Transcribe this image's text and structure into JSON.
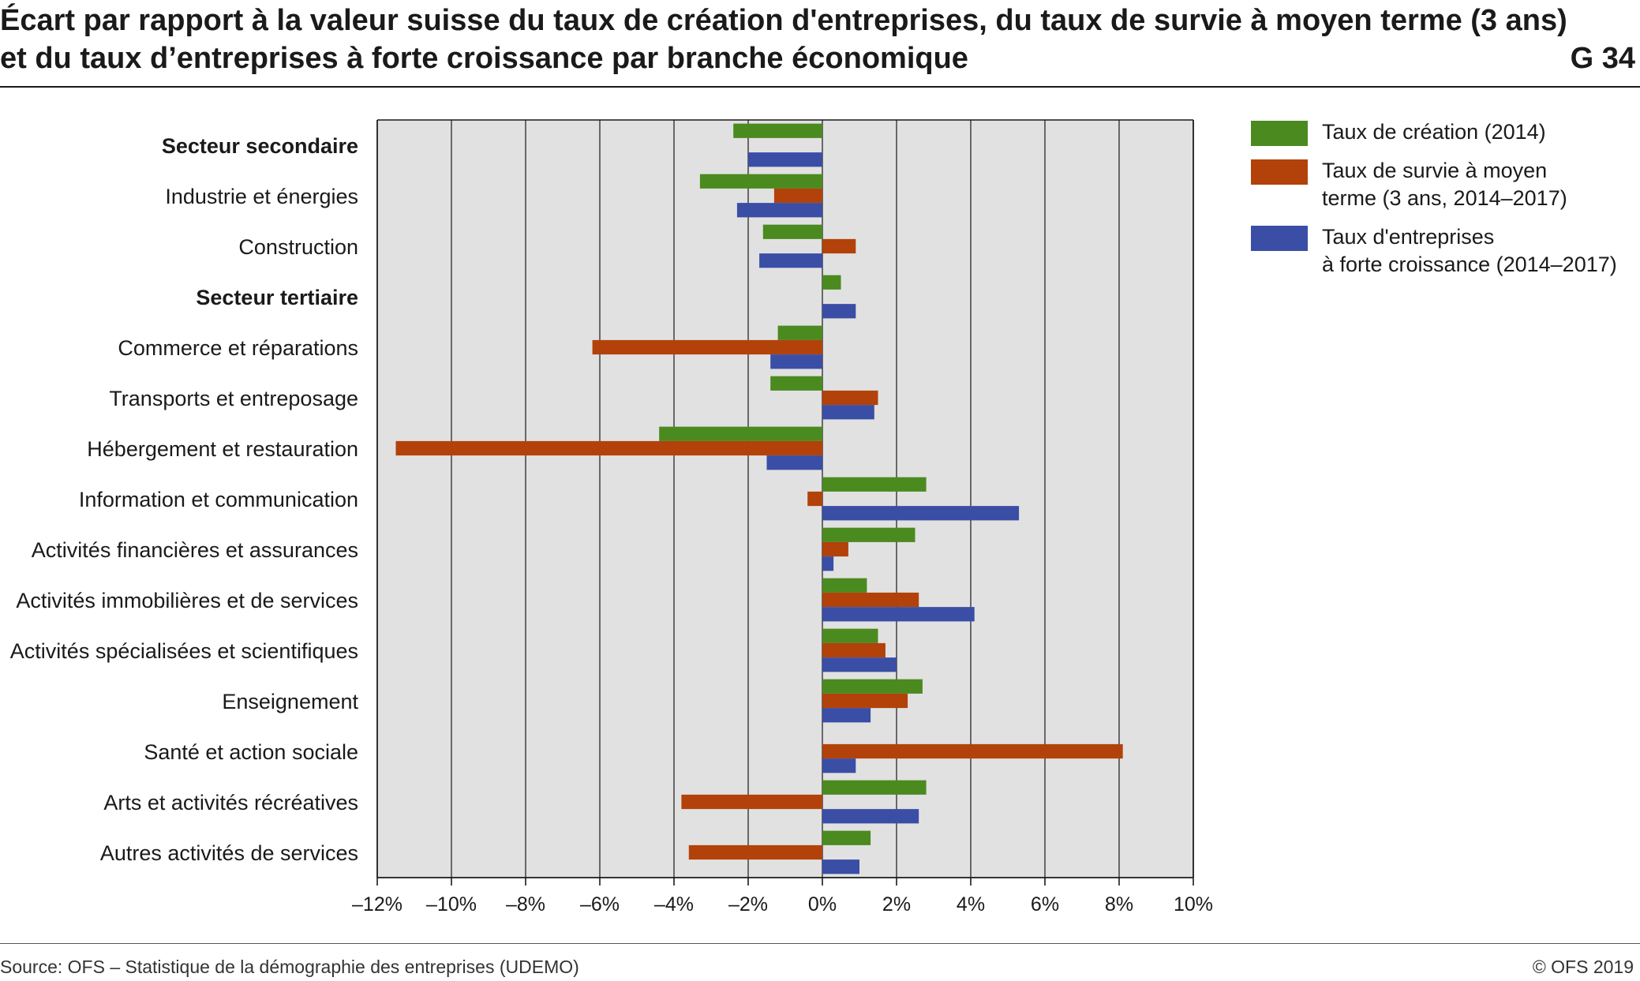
{
  "title": {
    "line1": "Écart par rapport à la valeur suisse du taux de création d'entreprises, du taux de survie à moyen terme (3 ans)",
    "line2": "et du taux d’entreprises à forte croissance par branche économique",
    "code": "G 34"
  },
  "footer": {
    "source": "Source: OFS – Statistique de la démographie des entreprises (UDEMO)",
    "copyright": "© OFS 2019"
  },
  "colors": {
    "plot_background": "#e1e1e1",
    "creation": "#4b8a1f",
    "survie": "#b2420a",
    "croissance": "#3a4ea5"
  },
  "chart_data": {
    "type": "bar",
    "orientation": "horizontal",
    "title": "Écart par rapport à la valeur suisse du taux de création d'entreprises, du taux de survie à moyen terme (3 ans) et du taux d’entreprises à forte croissance par branche économique",
    "xlabel": "",
    "ylabel": "",
    "xlim": [
      -12,
      10
    ],
    "x_ticks": [
      -12,
      -10,
      -8,
      -6,
      -4,
      -2,
      0,
      2,
      4,
      6,
      8,
      10
    ],
    "x_tick_labels": [
      "–12%",
      "–10%",
      "–8%",
      "–6%",
      "–4%",
      "–2%",
      "0%",
      "2%",
      "4%",
      "6%",
      "8%",
      "10%"
    ],
    "grid": "vertical",
    "legend_position": "right",
    "categories": [
      "Secteur secondaire",
      "Industrie et énergies",
      "Construction",
      "Secteur tertiaire",
      "Commerce et réparations",
      "Transports et entreposage",
      "Hébergement et restauration",
      "Information et communication",
      "Activités financières et assurances",
      "Activités immobilières et de services",
      "Activités spécialisées et scientifiques",
      "Enseignement",
      "Santé et action sociale",
      "Arts et activités récréatives",
      "Autres activités de services"
    ],
    "bold_categories": [
      "Secteur secondaire",
      "Secteur tertiaire"
    ],
    "series": [
      {
        "name": "Taux de création (2014)",
        "key": "creation",
        "values": [
          -2.4,
          -3.3,
          -1.6,
          0.5,
          -1.2,
          -1.4,
          -4.4,
          2.8,
          2.5,
          1.2,
          1.5,
          2.7,
          0,
          2.8,
          1.3
        ]
      },
      {
        "name": "Taux de survie à moyen\nterme (3 ans, 2014–2017)",
        "key": "survie",
        "values": [
          0,
          -1.3,
          0.9,
          0,
          -6.2,
          1.5,
          -11.5,
          -0.4,
          0.7,
          2.6,
          1.7,
          2.3,
          8.1,
          -3.8,
          -3.6
        ]
      },
      {
        "name": "Taux d'entreprises\nà forte croissance (2014–2017)",
        "key": "croissance",
        "values": [
          -2.0,
          -2.3,
          -1.7,
          0.9,
          -1.4,
          1.4,
          -1.5,
          5.3,
          0.3,
          4.1,
          2.0,
          1.3,
          0.9,
          2.6,
          1.0
        ]
      }
    ]
  }
}
